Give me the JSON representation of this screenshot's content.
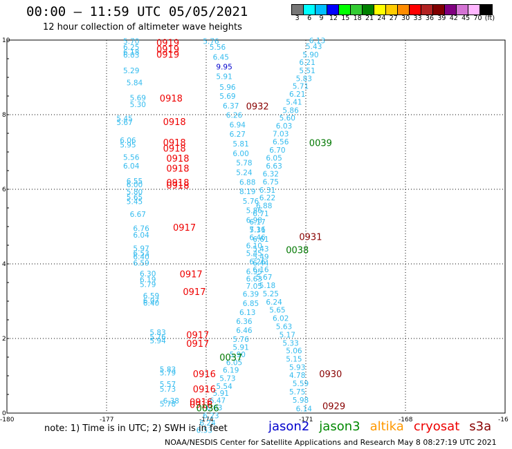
{
  "header": {
    "title": "00:00 – 11:59 UTC 05/05/2021",
    "subtitle": "12 hour collection of altimeter wave heights"
  },
  "colorbar": {
    "colors": [
      "#777777",
      "#00ffff",
      "#00bfff",
      "#0000ff",
      "#00ff00",
      "#33cc33",
      "#008000",
      "#ffff00",
      "#ffcc00",
      "#ff8c00",
      "#ff0000",
      "#b22222",
      "#800000",
      "#800080",
      "#d473d4",
      "#ffb6ff",
      "#000000"
    ],
    "labels": [
      "3",
      "6",
      "9",
      "12",
      "15",
      "18",
      "21",
      "24",
      "27",
      "30",
      "33",
      "36",
      "39",
      "42",
      "45",
      "70",
      "(ft)"
    ]
  },
  "chart_data": {
    "type": "scatter",
    "title": "12 hour collection of altimeter wave heights",
    "xlim": [
      -180,
      -165
    ],
    "ylim": [
      0,
      10
    ],
    "xticks": [
      "-180",
      "-177",
      "-174",
      "-171",
      "-168",
      "-16"
    ],
    "yticks": [
      "0",
      "2",
      "4",
      "6",
      "8",
      "10"
    ],
    "grid": true,
    "swh_points": [
      {
        "x": -176.5,
        "y": 9.9,
        "v": "5.70",
        "c": "#33bbee"
      },
      {
        "x": -176.5,
        "y": 9.74,
        "v": "6.25",
        "c": "#33bbee"
      },
      {
        "x": -176.5,
        "y": 9.6,
        "v": "6.18",
        "c": "#33bbee"
      },
      {
        "x": -176.5,
        "y": 9.53,
        "v": "6.03",
        "c": "#33bbee"
      },
      {
        "x": -176.5,
        "y": 9.11,
        "v": "5.29",
        "c": "#33bbee"
      },
      {
        "x": -176.4,
        "y": 8.79,
        "v": "5.84",
        "c": "#33bbee"
      },
      {
        "x": -176.3,
        "y": 8.38,
        "v": "5.69",
        "c": "#33bbee"
      },
      {
        "x": -176.3,
        "y": 8.2,
        "v": "5.30",
        "c": "#33bbee"
      },
      {
        "x": -176.7,
        "y": 7.82,
        "v": "5.45",
        "c": "#33bbee"
      },
      {
        "x": -176.7,
        "y": 7.72,
        "v": "5.67",
        "c": "#33bbee"
      },
      {
        "x": -176.6,
        "y": 7.24,
        "v": "6.06",
        "c": "#33bbee"
      },
      {
        "x": -176.6,
        "y": 7.12,
        "v": "5.95",
        "c": "#33bbee"
      },
      {
        "x": -176.5,
        "y": 6.79,
        "v": "5.56",
        "c": "#33bbee"
      },
      {
        "x": -176.5,
        "y": 6.56,
        "v": "6.04",
        "c": "#33bbee"
      },
      {
        "x": -176.4,
        "y": 6.15,
        "v": "6.55",
        "c": "#33bbee"
      },
      {
        "x": -176.4,
        "y": 6.06,
        "v": "6.00",
        "c": "#33bbee"
      },
      {
        "x": -176.4,
        "y": 5.86,
        "v": "5.80",
        "c": "#33bbee"
      },
      {
        "x": -176.4,
        "y": 5.71,
        "v": "5.65",
        "c": "#33bbee"
      },
      {
        "x": -176.4,
        "y": 5.6,
        "v": "5.45",
        "c": "#33bbee"
      },
      {
        "x": -176.3,
        "y": 5.26,
        "v": "6.67",
        "c": "#33bbee"
      },
      {
        "x": -176.2,
        "y": 4.88,
        "v": "6.76",
        "c": "#33bbee"
      },
      {
        "x": -176.2,
        "y": 4.7,
        "v": "6.04",
        "c": "#33bbee"
      },
      {
        "x": -176.2,
        "y": 4.34,
        "v": "5.97",
        "c": "#33bbee"
      },
      {
        "x": -176.2,
        "y": 4.21,
        "v": "6.53",
        "c": "#33bbee"
      },
      {
        "x": -176.2,
        "y": 4.12,
        "v": "6.40",
        "c": "#33bbee"
      },
      {
        "x": -176.2,
        "y": 3.95,
        "v": "6.59",
        "c": "#33bbee"
      },
      {
        "x": -176.0,
        "y": 3.67,
        "v": "6.30",
        "c": "#33bbee"
      },
      {
        "x": -176.0,
        "y": 3.51,
        "v": "6.19",
        "c": "#33bbee"
      },
      {
        "x": -176.0,
        "y": 3.38,
        "v": "5.79",
        "c": "#33bbee"
      },
      {
        "x": -175.9,
        "y": 3.07,
        "v": "6.59",
        "c": "#33bbee"
      },
      {
        "x": -175.9,
        "y": 2.94,
        "v": "6.07",
        "c": "#33bbee"
      },
      {
        "x": -175.9,
        "y": 2.88,
        "v": "6.40",
        "c": "#33bbee"
      },
      {
        "x": -175.7,
        "y": 2.09,
        "v": "5.83",
        "c": "#33bbee"
      },
      {
        "x": -175.7,
        "y": 1.97,
        "v": "5.76",
        "c": "#33bbee"
      },
      {
        "x": -175.7,
        "y": 1.87,
        "v": "5.94",
        "c": "#33bbee"
      },
      {
        "x": -175.4,
        "y": 1.1,
        "v": "5.83",
        "c": "#33bbee"
      },
      {
        "x": -175.4,
        "y": 1.01,
        "v": "5.79",
        "c": "#33bbee"
      },
      {
        "x": -175.4,
        "y": 0.7,
        "v": "5.57",
        "c": "#33bbee"
      },
      {
        "x": -175.4,
        "y": 0.57,
        "v": "5.73",
        "c": "#33bbee"
      },
      {
        "x": -175.3,
        "y": 0.26,
        "v": "6.38",
        "c": "#33bbee"
      },
      {
        "x": -175.4,
        "y": 0.18,
        "v": "5.78",
        "c": "#33bbee"
      },
      {
        "x": -174.1,
        "y": 9.9,
        "v": "5.76",
        "c": "#33bbee"
      },
      {
        "x": -173.9,
        "y": 9.74,
        "v": "5.56",
        "c": "#33bbee"
      },
      {
        "x": -173.8,
        "y": 9.47,
        "v": "6.45",
        "c": "#33bbee"
      },
      {
        "x": -173.7,
        "y": 9.21,
        "v": "9.95",
        "c": "#0000cc"
      },
      {
        "x": -173.7,
        "y": 8.95,
        "v": "5.91",
        "c": "#33bbee"
      },
      {
        "x": -173.6,
        "y": 8.67,
        "v": "5.96",
        "c": "#33bbee"
      },
      {
        "x": -173.6,
        "y": 8.43,
        "v": "5.69",
        "c": "#33bbee"
      },
      {
        "x": -173.5,
        "y": 8.17,
        "v": "6.37",
        "c": "#33bbee"
      },
      {
        "x": -173.4,
        "y": 7.92,
        "v": "6.26",
        "c": "#33bbee"
      },
      {
        "x": -173.3,
        "y": 7.66,
        "v": "6.94",
        "c": "#33bbee"
      },
      {
        "x": -173.3,
        "y": 7.41,
        "v": "6.27",
        "c": "#33bbee"
      },
      {
        "x": -173.2,
        "y": 7.15,
        "v": "5.81",
        "c": "#33bbee"
      },
      {
        "x": -173.2,
        "y": 6.89,
        "v": "6.00",
        "c": "#33bbee"
      },
      {
        "x": -173.1,
        "y": 6.64,
        "v": "5.78",
        "c": "#33bbee"
      },
      {
        "x": -173.1,
        "y": 6.38,
        "v": "5.24",
        "c": "#33bbee"
      },
      {
        "x": -173.0,
        "y": 6.12,
        "v": "6.88",
        "c": "#33bbee"
      },
      {
        "x": -173.0,
        "y": 5.87,
        "v": "8.19",
        "c": "#33bbee"
      },
      {
        "x": -172.9,
        "y": 5.61,
        "v": "5.76",
        "c": "#33bbee"
      },
      {
        "x": -172.8,
        "y": 5.36,
        "v": "5.86",
        "c": "#33bbee"
      },
      {
        "x": -172.8,
        "y": 5.1,
        "v": "6.98",
        "c": "#33bbee"
      },
      {
        "x": -172.7,
        "y": 4.84,
        "v": "5.31",
        "c": "#33bbee"
      },
      {
        "x": -172.6,
        "y": 4.59,
        "v": "6.61",
        "c": "#33bbee"
      },
      {
        "x": -172.6,
        "y": 4.33,
        "v": "5.43",
        "c": "#33bbee"
      },
      {
        "x": -172.6,
        "y": 4.12,
        "v": "5.49",
        "c": "#33bbee"
      },
      {
        "x": -172.6,
        "y": 3.95,
        "v": "6.44",
        "c": "#33bbee"
      },
      {
        "x": -172.8,
        "y": 3.72,
        "v": "6.95",
        "c": "#33bbee"
      },
      {
        "x": -172.8,
        "y": 3.53,
        "v": "6.63",
        "c": "#33bbee"
      },
      {
        "x": -172.8,
        "y": 3.33,
        "v": "7.05",
        "c": "#33bbee"
      },
      {
        "x": -172.9,
        "y": 3.12,
        "v": "6.39",
        "c": "#33bbee"
      },
      {
        "x": -172.9,
        "y": 2.87,
        "v": "6.85",
        "c": "#33bbee"
      },
      {
        "x": -173.0,
        "y": 2.63,
        "v": "6.13",
        "c": "#33bbee"
      },
      {
        "x": -173.1,
        "y": 2.39,
        "v": "6.36",
        "c": "#33bbee"
      },
      {
        "x": -173.1,
        "y": 2.15,
        "v": "6.46",
        "c": "#33bbee"
      },
      {
        "x": -173.2,
        "y": 1.91,
        "v": "5.76",
        "c": "#33bbee"
      },
      {
        "x": -173.2,
        "y": 1.69,
        "v": "5.91",
        "c": "#33bbee"
      },
      {
        "x": -173.3,
        "y": 1.5,
        "v": "5.90",
        "c": "#33bbee"
      },
      {
        "x": -173.4,
        "y": 1.29,
        "v": "6.05",
        "c": "#33bbee"
      },
      {
        "x": -173.5,
        "y": 1.08,
        "v": "6.19",
        "c": "#33bbee"
      },
      {
        "x": -173.6,
        "y": 0.86,
        "v": "5.73",
        "c": "#33bbee"
      },
      {
        "x": -173.7,
        "y": 0.65,
        "v": "5.54",
        "c": "#33bbee"
      },
      {
        "x": -173.8,
        "y": 0.46,
        "v": "5.91",
        "c": "#33bbee"
      },
      {
        "x": -173.9,
        "y": 0.27,
        "v": "6.47",
        "c": "#33bbee"
      },
      {
        "x": -174.0,
        "y": 0.07,
        "v": "6.03",
        "c": "#33bbee"
      },
      {
        "x": -174.1,
        "y": -0.14,
        "v": "6.23",
        "c": "#33bbee"
      },
      {
        "x": -174.2,
        "y": -0.33,
        "v": "6.24",
        "c": "#33bbee"
      },
      {
        "x": -174.3,
        "y": -0.53,
        "v": "6.53",
        "c": "#33bbee"
      },
      {
        "x": -170.9,
        "y": 9.92,
        "v": "6.13",
        "c": "#33bbee"
      },
      {
        "x": -171.0,
        "y": 9.76,
        "v": "5.43",
        "c": "#33bbee"
      },
      {
        "x": -171.1,
        "y": 9.54,
        "v": "5.90",
        "c": "#33bbee"
      },
      {
        "x": -171.2,
        "y": 9.33,
        "v": "6.21",
        "c": "#33bbee"
      },
      {
        "x": -171.2,
        "y": 9.11,
        "v": "5.51",
        "c": "#33bbee"
      },
      {
        "x": -171.3,
        "y": 8.9,
        "v": "5.83",
        "c": "#33bbee"
      },
      {
        "x": -171.4,
        "y": 8.69,
        "v": "5.71",
        "c": "#33bbee"
      },
      {
        "x": -171.5,
        "y": 8.48,
        "v": "6.21",
        "c": "#33bbee"
      },
      {
        "x": -171.6,
        "y": 8.27,
        "v": "5.41",
        "c": "#33bbee"
      },
      {
        "x": -171.7,
        "y": 8.05,
        "v": "5.86",
        "c": "#33bbee"
      },
      {
        "x": -171.8,
        "y": 7.84,
        "v": "5.60",
        "c": "#33bbee"
      },
      {
        "x": -171.9,
        "y": 7.63,
        "v": "6.03",
        "c": "#33bbee"
      },
      {
        "x": -172.0,
        "y": 7.42,
        "v": "7.03",
        "c": "#33bbee"
      },
      {
        "x": -172.0,
        "y": 7.2,
        "v": "6.56",
        "c": "#33bbee"
      },
      {
        "x": -172.1,
        "y": 6.98,
        "v": "6.70",
        "c": "#33bbee"
      },
      {
        "x": -172.2,
        "y": 6.77,
        "v": "6.05",
        "c": "#33bbee"
      },
      {
        "x": -172.2,
        "y": 6.56,
        "v": "6.63",
        "c": "#33bbee"
      },
      {
        "x": -172.3,
        "y": 6.34,
        "v": "6.32",
        "c": "#33bbee"
      },
      {
        "x": -172.3,
        "y": 6.13,
        "v": "6.75",
        "c": "#33bbee"
      },
      {
        "x": -172.4,
        "y": 5.91,
        "v": "6.31",
        "c": "#33bbee"
      },
      {
        "x": -172.4,
        "y": 5.7,
        "v": "6.22",
        "c": "#33bbee"
      },
      {
        "x": -172.5,
        "y": 5.49,
        "v": "6.88",
        "c": "#33bbee"
      },
      {
        "x": -172.6,
        "y": 5.28,
        "v": "6.71",
        "c": "#33bbee"
      },
      {
        "x": -172.7,
        "y": 5.06,
        "v": "6.17",
        "c": "#33bbee"
      },
      {
        "x": -172.7,
        "y": 4.85,
        "v": "7.16",
        "c": "#33bbee"
      },
      {
        "x": -172.7,
        "y": 4.64,
        "v": "6.46",
        "c": "#33bbee"
      },
      {
        "x": -172.8,
        "y": 4.42,
        "v": "6.10",
        "c": "#33bbee"
      },
      {
        "x": -172.8,
        "y": 4.21,
        "v": "5.45",
        "c": "#33bbee"
      },
      {
        "x": -172.7,
        "y": 3.99,
        "v": "6.26",
        "c": "#33bbee"
      },
      {
        "x": -172.6,
        "y": 3.78,
        "v": "6.16",
        "c": "#33bbee"
      },
      {
        "x": -172.5,
        "y": 3.57,
        "v": "5.67",
        "c": "#33bbee"
      },
      {
        "x": -172.4,
        "y": 3.35,
        "v": "5.18",
        "c": "#33bbee"
      },
      {
        "x": -172.3,
        "y": 3.13,
        "v": "5.25",
        "c": "#33bbee"
      },
      {
        "x": -172.2,
        "y": 2.91,
        "v": "6.24",
        "c": "#33bbee"
      },
      {
        "x": -172.1,
        "y": 2.69,
        "v": "5.65",
        "c": "#33bbee"
      },
      {
        "x": -172.0,
        "y": 2.47,
        "v": "6.02",
        "c": "#33bbee"
      },
      {
        "x": -171.9,
        "y": 2.25,
        "v": "5.63",
        "c": "#33bbee"
      },
      {
        "x": -171.8,
        "y": 2.03,
        "v": "5.17",
        "c": "#33bbee"
      },
      {
        "x": -171.7,
        "y": 1.81,
        "v": "5.33",
        "c": "#33bbee"
      },
      {
        "x": -171.6,
        "y": 1.6,
        "v": "5.06",
        "c": "#33bbee"
      },
      {
        "x": -171.6,
        "y": 1.38,
        "v": "5.15",
        "c": "#33bbee"
      },
      {
        "x": -171.5,
        "y": 1.16,
        "v": "5.93",
        "c": "#33bbee"
      },
      {
        "x": -171.5,
        "y": 0.94,
        "v": "4.78",
        "c": "#33bbee"
      },
      {
        "x": -171.4,
        "y": 0.72,
        "v": "5.59",
        "c": "#33bbee"
      },
      {
        "x": -171.5,
        "y": 0.5,
        "v": "5.75",
        "c": "#33bbee"
      },
      {
        "x": -171.4,
        "y": 0.28,
        "v": "5.98",
        "c": "#33bbee"
      },
      {
        "x": -171.3,
        "y": 0.05,
        "v": "6.14",
        "c": "#33bbee"
      }
    ],
    "time_labels": [
      {
        "x": -175.5,
        "y": 9.84,
        "v": "0919",
        "c": "#ee0000"
      },
      {
        "x": -175.5,
        "y": 9.67,
        "v": "0919",
        "c": "#ee0000"
      },
      {
        "x": -175.5,
        "y": 9.53,
        "v": "0919",
        "c": "#ee0000"
      },
      {
        "x": -175.4,
        "y": 8.35,
        "v": "0918",
        "c": "#ee0000"
      },
      {
        "x": -175.3,
        "y": 7.72,
        "v": "0918",
        "c": "#ee0000"
      },
      {
        "x": -175.3,
        "y": 7.17,
        "v": "0918",
        "c": "#ee0000"
      },
      {
        "x": -175.3,
        "y": 7.01,
        "v": "0918",
        "c": "#ee0000"
      },
      {
        "x": -175.2,
        "y": 6.74,
        "v": "0918",
        "c": "#ee0000"
      },
      {
        "x": -175.2,
        "y": 6.47,
        "v": "0918",
        "c": "#ee0000"
      },
      {
        "x": -175.2,
        "y": 6.09,
        "v": "0918",
        "c": "#ee0000"
      },
      {
        "x": -175.2,
        "y": 6.02,
        "v": "0918",
        "c": "#ee0000"
      },
      {
        "x": -175.0,
        "y": 4.89,
        "v": "0917",
        "c": "#ee0000"
      },
      {
        "x": -174.8,
        "y": 3.64,
        "v": "0917",
        "c": "#ee0000"
      },
      {
        "x": -174.7,
        "y": 3.17,
        "v": "0917",
        "c": "#ee0000"
      },
      {
        "x": -174.6,
        "y": 2.01,
        "v": "0917",
        "c": "#ee0000"
      },
      {
        "x": -174.6,
        "y": 1.78,
        "v": "0917",
        "c": "#ee0000"
      },
      {
        "x": -174.4,
        "y": 0.96,
        "v": "0916",
        "c": "#ee0000"
      },
      {
        "x": -174.4,
        "y": 0.56,
        "v": "0916",
        "c": "#ee0000"
      },
      {
        "x": -174.5,
        "y": 0.21,
        "v": "0916",
        "c": "#ee0000"
      },
      {
        "x": -174.5,
        "y": 0.14,
        "v": "0916",
        "c": "#ee0000"
      },
      {
        "x": -172.8,
        "y": 8.14,
        "v": "0932",
        "c": "#880000"
      },
      {
        "x": -171.2,
        "y": 4.64,
        "v": "0931",
        "c": "#880000"
      },
      {
        "x": -170.6,
        "y": 0.96,
        "v": "0930",
        "c": "#880000"
      },
      {
        "x": -170.5,
        "y": 0.1,
        "v": "0929",
        "c": "#880000"
      },
      {
        "x": -170.9,
        "y": 7.16,
        "v": "0039",
        "c": "#007700"
      },
      {
        "x": -171.6,
        "y": 4.29,
        "v": "0038",
        "c": "#007700"
      },
      {
        "x": -173.6,
        "y": 1.41,
        "v": "0037",
        "c": "#007700"
      },
      {
        "x": -174.3,
        "y": 0.05,
        "v": "0036",
        "c": "#007700"
      }
    ]
  },
  "footer": {
    "note": "note:  1) Time is in UTC;  2) SWH is in feet",
    "credit": "NOAA/NESDIS Center for Satellite Applications and Research    May  8 08:27:19 UTC 2021",
    "legend": [
      {
        "label": "jason2",
        "color": "#0000cc"
      },
      {
        "label": "jason3",
        "color": "#008800"
      },
      {
        "label": "altika",
        "color": "#ff9900"
      },
      {
        "label": "cryosat",
        "color": "#ee0000"
      },
      {
        "label": "s3a",
        "color": "#880000"
      }
    ]
  }
}
